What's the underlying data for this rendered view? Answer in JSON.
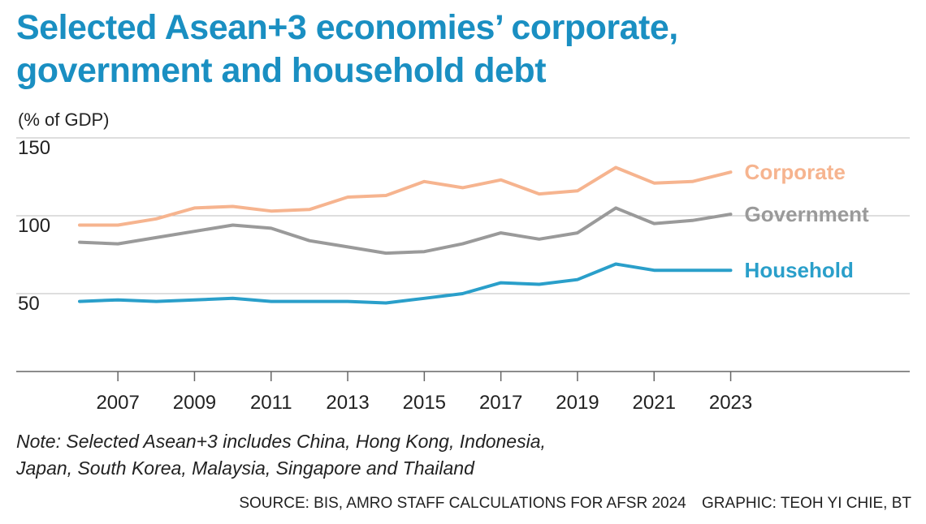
{
  "title_line1": "Selected Asean+3 economies’ corporate,",
  "title_line2": "government and household debt",
  "chart_data": {
    "type": "line",
    "title": "Selected Asean+3 economies’ corporate, government and household debt",
    "ylabel": "(% of GDP)",
    "xlabel": "",
    "ylim": [
      0,
      150
    ],
    "yticks": [
      50,
      100,
      150
    ],
    "xticks": [
      "2007",
      "2009",
      "2011",
      "2013",
      "2015",
      "2017",
      "2019",
      "2021",
      "2023"
    ],
    "x": [
      2006,
      2007,
      2008,
      2009,
      2010,
      2011,
      2012,
      2013,
      2014,
      2015,
      2016,
      2017,
      2018,
      2019,
      2020,
      2021,
      2022,
      2023
    ],
    "series": [
      {
        "name": "Corporate",
        "color": "#f6b48f",
        "values": [
          94,
          94,
          98,
          105,
          106,
          103,
          104,
          112,
          113,
          122,
          118,
          123,
          114,
          116,
          131,
          121,
          122,
          128
        ]
      },
      {
        "name": "Government",
        "color": "#9a9a9a",
        "values": [
          83,
          82,
          86,
          90,
          94,
          92,
          84,
          80,
          76,
          77,
          82,
          89,
          85,
          89,
          105,
          95,
          97,
          101
        ]
      },
      {
        "name": "Household",
        "color": "#2a9fca",
        "values": [
          45,
          46,
          45,
          46,
          47,
          45,
          45,
          45,
          44,
          47,
          50,
          57,
          56,
          59,
          69,
          65,
          65,
          65
        ]
      }
    ]
  },
  "note_line1": "Note: Selected Asean+3 includes China, Hong Kong, Indonesia,",
  "note_line2": "Japan, South Korea, Malaysia, Singapore and Thailand",
  "source": "SOURCE: BIS, AMRO STAFF CALCULATIONS FOR AFSR 2024",
  "graphic_credit": "GRAPHIC: TEOH YI CHIE, BT"
}
